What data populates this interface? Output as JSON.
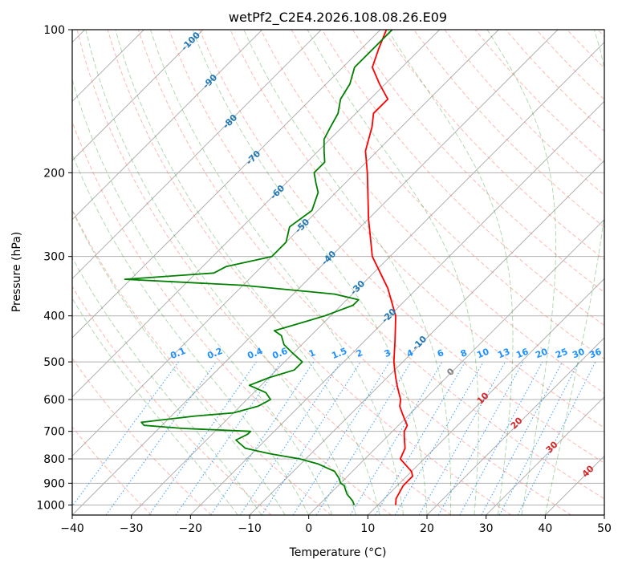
{
  "chart_data": {
    "type": "line",
    "title": "wetPf2_C2E4.2026.108.08.26.E09",
    "xlabel": "Temperature (°C)",
    "ylabel": "Pressure (hPa)",
    "xlim": [
      -40,
      50
    ],
    "ylim": [
      1050,
      100
    ],
    "y_scale": "log",
    "grid": true,
    "x_ticks": [
      -40,
      -30,
      -20,
      -10,
      0,
      10,
      20,
      30,
      40,
      50
    ],
    "y_ticks": [
      100,
      200,
      300,
      400,
      500,
      600,
      700,
      800,
      900,
      1000
    ],
    "x_tick_labels": [
      "−40",
      "−30",
      "−20",
      "−10",
      "0",
      "10",
      "20",
      "30",
      "40",
      "50"
    ],
    "y_tick_labels": [
      "100",
      "200",
      "300",
      "400",
      "500",
      "600",
      "700",
      "800",
      "900",
      "1000"
    ],
    "series": [
      {
        "color": "#ff0000",
        "points": [
          [
            1000,
            13
          ],
          [
            970,
            12
          ],
          [
            940,
            11.5
          ],
          [
            910,
            11
          ],
          [
            890,
            11
          ],
          [
            870,
            11
          ],
          [
            850,
            10
          ],
          [
            800,
            6
          ],
          [
            760,
            5
          ],
          [
            740,
            4
          ],
          [
            720,
            3
          ],
          [
            700,
            2
          ],
          [
            680,
            1.5
          ],
          [
            660,
            0
          ],
          [
            640,
            -1.5
          ],
          [
            620,
            -3
          ],
          [
            600,
            -4
          ],
          [
            580,
            -5.5
          ],
          [
            560,
            -7
          ],
          [
            540,
            -8.5
          ],
          [
            520,
            -10
          ],
          [
            500,
            -11.5
          ],
          [
            450,
            -15
          ],
          [
            400,
            -19
          ],
          [
            350,
            -25
          ],
          [
            300,
            -33
          ],
          [
            250,
            -40
          ],
          [
            200,
            -48
          ],
          [
            180,
            -52
          ],
          [
            160,
            -55
          ],
          [
            150,
            -57
          ],
          [
            140,
            -57
          ],
          [
            130,
            -61
          ],
          [
            120,
            -65
          ],
          [
            110,
            -67
          ],
          [
            100,
            -69
          ]
        ]
      },
      {
        "color": "#008000",
        "points": [
          [
            1000,
            6
          ],
          [
            980,
            5
          ],
          [
            950,
            3
          ],
          [
            930,
            2
          ],
          [
            910,
            1
          ],
          [
            900,
            0
          ],
          [
            880,
            -1
          ],
          [
            850,
            -3
          ],
          [
            820,
            -7
          ],
          [
            800,
            -11
          ],
          [
            780,
            -17
          ],
          [
            760,
            -22
          ],
          [
            740,
            -24
          ],
          [
            730,
            -25
          ],
          [
            710,
            -24
          ],
          [
            700,
            -24
          ],
          [
            690,
            -36
          ],
          [
            680,
            -43
          ],
          [
            670,
            -44
          ],
          [
            660,
            -40
          ],
          [
            650,
            -36
          ],
          [
            640,
            -30
          ],
          [
            620,
            -27
          ],
          [
            600,
            -26
          ],
          [
            580,
            -28
          ],
          [
            560,
            -32
          ],
          [
            540,
            -30
          ],
          [
            520,
            -27
          ],
          [
            500,
            -27
          ],
          [
            480,
            -30
          ],
          [
            460,
            -33
          ],
          [
            440,
            -35
          ],
          [
            430,
            -37
          ],
          [
            410,
            -33
          ],
          [
            400,
            -31
          ],
          [
            380,
            -28
          ],
          [
            370,
            -28
          ],
          [
            360,
            -33
          ],
          [
            345,
            -50
          ],
          [
            335,
            -71
          ],
          [
            325,
            -57
          ],
          [
            315,
            -56
          ],
          [
            300,
            -50
          ],
          [
            280,
            -50
          ],
          [
            260,
            -52
          ],
          [
            240,
            -51
          ],
          [
            220,
            -53
          ],
          [
            210,
            -55
          ],
          [
            200,
            -57
          ],
          [
            190,
            -57
          ],
          [
            180,
            -59
          ],
          [
            170,
            -61
          ],
          [
            160,
            -62
          ],
          [
            150,
            -63
          ],
          [
            140,
            -65
          ],
          [
            130,
            -66
          ],
          [
            120,
            -68
          ],
          [
            110,
            -68
          ],
          [
            100,
            -68
          ]
        ]
      }
    ],
    "reference_lines": {
      "dry_adiabats": {
        "color": "#fa8072",
        "style": "dashed"
      },
      "moist_adiabats": {
        "color": "#008000",
        "style": "dashed"
      },
      "mixing_ratio": {
        "color": "#1e90ff",
        "style": "dotted"
      }
    },
    "isotherm_labels": [
      "-100",
      "-90",
      "-80",
      "-70",
      "-60",
      "-50",
      "-40",
      "-30",
      "-20",
      "-10",
      "0",
      "10",
      "20",
      "30",
      "40"
    ],
    "mixing_ratio_labels": [
      "0.1",
      "0.2",
      "0.4",
      "0.6",
      "1",
      "1.5",
      "2",
      "3",
      "4",
      "6",
      "8",
      "10",
      "13",
      "16",
      "20",
      "25",
      "30",
      "36"
    ],
    "colors": {
      "temperature": "#ff0000",
      "dewpoint": "#008000",
      "isotherm_label": "#1f77b4",
      "isotherm_label_warm": "#d62728",
      "isotherm_label_zero": "#808080",
      "mixing_ratio_label": "#1e90ff",
      "grid": "#b0b0b0"
    }
  }
}
